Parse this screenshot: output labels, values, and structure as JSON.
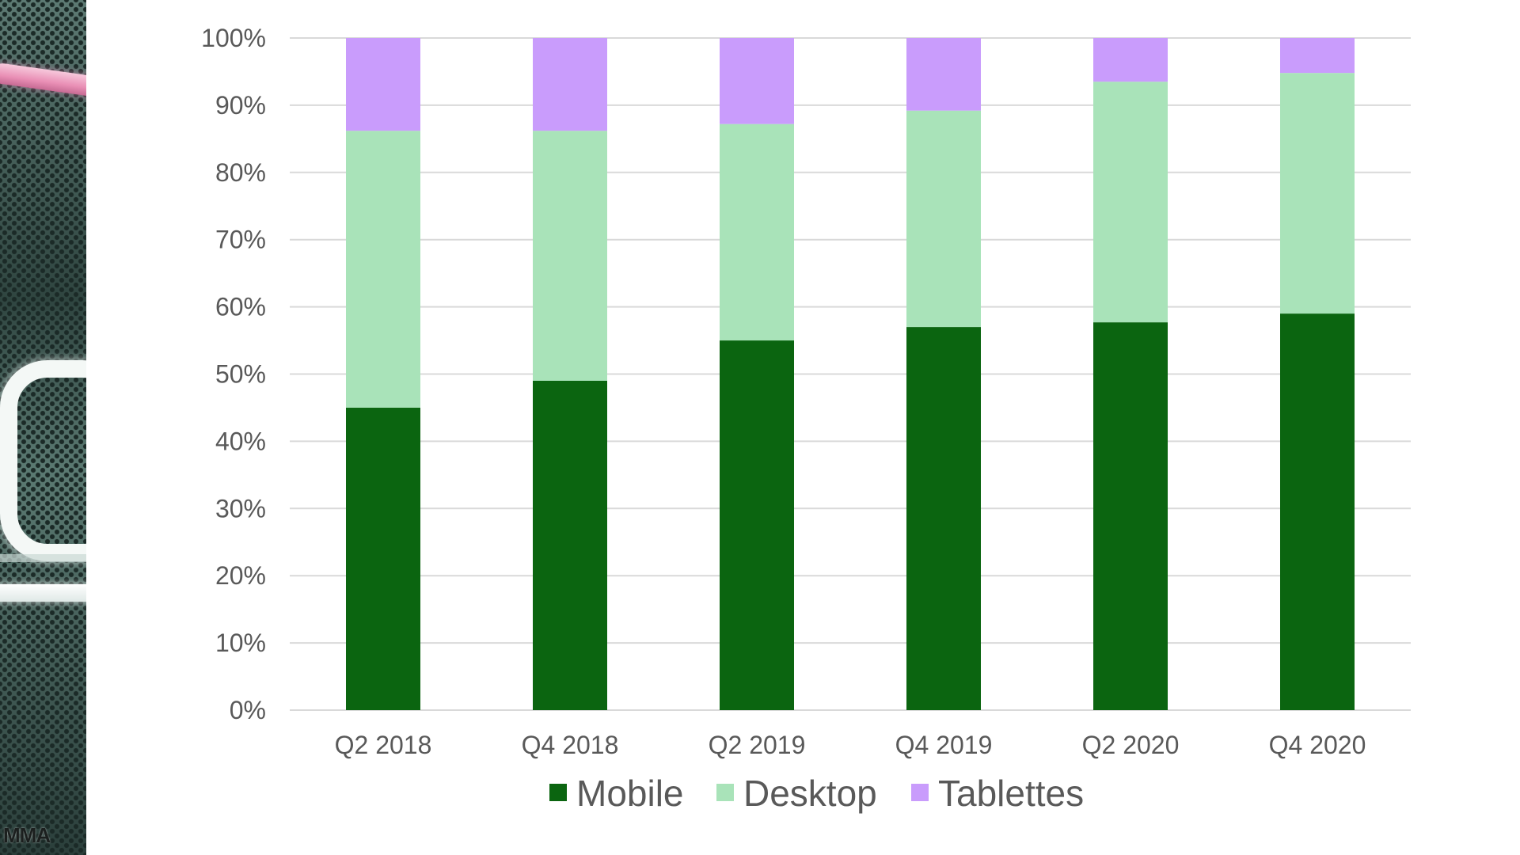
{
  "logo": {
    "text": "MMA"
  },
  "colors": {
    "mobile": "#0b6510",
    "desktop": "#a9e3b9",
    "tablettes": "#c99cfc",
    "gridline": "#d9d9d9",
    "tick_text": "#595959"
  },
  "chart_data": {
    "type": "bar",
    "stacked": true,
    "normalized": true,
    "categories": [
      "Q2 2018",
      "Q4 2018",
      "Q2 2019",
      "Q4 2019",
      "Q2 2020",
      "Q4 2020"
    ],
    "series": [
      {
        "name": "Mobile",
        "values": [
          45,
          49,
          55,
          57,
          57.7,
          59
        ]
      },
      {
        "name": "Desktop",
        "values": [
          41.2,
          37.2,
          32.2,
          32.2,
          35.8,
          35.8
        ]
      },
      {
        "name": "Tablettes",
        "values": [
          13.8,
          13.8,
          12.8,
          10.8,
          6.5,
          5.2
        ]
      }
    ],
    "ylim": [
      0,
      100
    ],
    "yticks": [
      "0%",
      "10%",
      "20%",
      "30%",
      "40%",
      "50%",
      "60%",
      "70%",
      "80%",
      "90%",
      "100%"
    ],
    "title": "",
    "xlabel": "",
    "ylabel": "",
    "grid": true,
    "legend_position": "bottom"
  }
}
